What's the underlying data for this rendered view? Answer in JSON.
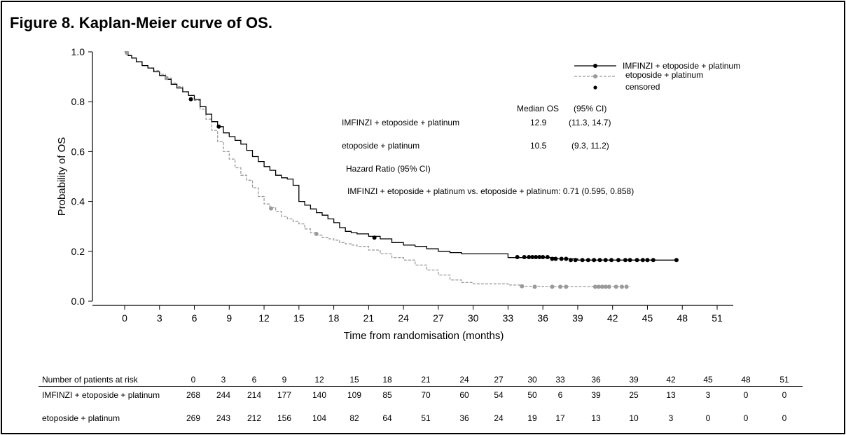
{
  "figure": {
    "title": "Figure 8. Kaplan-Meier curve of OS."
  },
  "chart_data": {
    "type": "line",
    "subtype": "kaplan-meier",
    "xlabel": "Time from randomisation (months)",
    "ylabel": "Probability of OS",
    "xlim": [
      0,
      51
    ],
    "ylim": [
      0.0,
      1.0
    ],
    "x_ticks": [
      0,
      3,
      6,
      9,
      12,
      15,
      18,
      21,
      24,
      27,
      30,
      33,
      36,
      39,
      42,
      45,
      48,
      51
    ],
    "y_ticks": [
      0.0,
      0.2,
      0.4,
      0.6,
      0.8,
      1.0
    ],
    "y_tick_labels": [
      "0.0",
      "0.2",
      "0.4",
      "0.6",
      "0.8",
      "1.0"
    ],
    "grid": false,
    "legend_position": "top-right",
    "legend": {
      "series_1": "IMFINZI + etoposide + platinum",
      "series_2": "etoposide + platinum",
      "censored": "censored"
    },
    "colors": {
      "series_1": "#000000",
      "series_2": "#9a9a9a"
    },
    "series": [
      {
        "name": "IMFINZI + etoposide + platinum",
        "line_style": "solid",
        "x": [
          0,
          0.3,
          0.6,
          1,
          1.5,
          2,
          2.5,
          3,
          3.5,
          4,
          4.5,
          5,
          5.5,
          6,
          6.5,
          7,
          7.5,
          8,
          8.5,
          9,
          9.5,
          10,
          10.5,
          11,
          11.5,
          12,
          12.5,
          13,
          13.5,
          14,
          14.5,
          15,
          15.5,
          16,
          16.5,
          17,
          17.5,
          18,
          18.5,
          19,
          19.5,
          20,
          21,
          22,
          23,
          24,
          25,
          26,
          27,
          28,
          29,
          30,
          31,
          32,
          33,
          34,
          35,
          36,
          37,
          38,
          39,
          40,
          42,
          44,
          46,
          47.5
        ],
        "y": [
          1.0,
          0.985,
          0.975,
          0.96,
          0.945,
          0.935,
          0.92,
          0.905,
          0.89,
          0.87,
          0.855,
          0.84,
          0.825,
          0.81,
          0.78,
          0.75,
          0.72,
          0.7,
          0.675,
          0.66,
          0.645,
          0.63,
          0.605,
          0.58,
          0.56,
          0.54,
          0.525,
          0.505,
          0.495,
          0.49,
          0.465,
          0.4,
          0.385,
          0.37,
          0.355,
          0.345,
          0.33,
          0.315,
          0.295,
          0.28,
          0.275,
          0.27,
          0.26,
          0.25,
          0.235,
          0.225,
          0.22,
          0.21,
          0.2,
          0.195,
          0.19,
          0.19,
          0.19,
          0.19,
          0.175,
          0.175,
          0.175,
          0.175,
          0.17,
          0.17,
          0.165,
          0.165,
          0.165,
          0.165,
          0.165,
          0.165
        ]
      },
      {
        "name": "etoposide + platinum",
        "line_style": "dashed",
        "x": [
          0,
          0.3,
          0.6,
          1,
          1.5,
          2,
          2.5,
          3,
          3.5,
          4,
          4.5,
          5,
          5.5,
          6,
          6.5,
          7,
          7.5,
          8,
          8.5,
          9,
          9.5,
          10,
          10.5,
          11,
          11.5,
          12,
          12.5,
          13,
          13.5,
          14,
          14.5,
          15,
          15.5,
          16,
          16.5,
          17,
          17.5,
          18,
          18.5,
          19,
          19.5,
          20,
          21,
          22,
          23,
          24,
          25,
          26,
          27,
          28,
          29,
          30,
          31,
          32,
          33,
          34,
          35,
          36,
          37,
          38,
          39,
          40,
          41,
          42,
          43,
          43.5
        ],
        "y": [
          1.0,
          0.985,
          0.975,
          0.96,
          0.945,
          0.935,
          0.925,
          0.91,
          0.895,
          0.875,
          0.86,
          0.84,
          0.825,
          0.805,
          0.77,
          0.73,
          0.685,
          0.64,
          0.6,
          0.57,
          0.535,
          0.505,
          0.485,
          0.455,
          0.42,
          0.39,
          0.375,
          0.36,
          0.34,
          0.33,
          0.32,
          0.31,
          0.29,
          0.275,
          0.265,
          0.255,
          0.25,
          0.245,
          0.235,
          0.23,
          0.225,
          0.22,
          0.205,
          0.19,
          0.175,
          0.165,
          0.145,
          0.125,
          0.105,
          0.085,
          0.075,
          0.07,
          0.07,
          0.07,
          0.065,
          0.06,
          0.06,
          0.058,
          0.058,
          0.058,
          0.058,
          0.058,
          0.058,
          0.058,
          0.058,
          0.058
        ]
      }
    ],
    "censored": [
      {
        "series": "IMFINZI + etoposide + platinum",
        "x": [
          5.7,
          8.1,
          21.5,
          33.8,
          34.4,
          34.8,
          35.1,
          35.4,
          35.7,
          36.0,
          36.4,
          36.8,
          37.1,
          37.6,
          38.0,
          38.4,
          38.8,
          39.4,
          39.9,
          40.4,
          40.9,
          41.4,
          41.9,
          42.5,
          43.1,
          43.5,
          44.1,
          44.6,
          45.0,
          45.5,
          47.5
        ],
        "y": [
          0.81,
          0.7,
          0.255,
          0.177,
          0.177,
          0.177,
          0.177,
          0.177,
          0.177,
          0.177,
          0.177,
          0.17,
          0.17,
          0.17,
          0.17,
          0.165,
          0.165,
          0.165,
          0.165,
          0.165,
          0.165,
          0.165,
          0.165,
          0.165,
          0.165,
          0.165,
          0.165,
          0.165,
          0.165,
          0.165,
          0.165
        ]
      },
      {
        "series": "etoposide + platinum",
        "x": [
          0.2,
          3.6,
          12.6,
          16.5,
          34.2,
          35.3,
          36.8,
          37.5,
          38.0,
          40.5,
          40.8,
          41.1,
          41.4,
          41.7,
          42.3,
          42.8,
          43.2
        ],
        "y": [
          0.995,
          0.895,
          0.372,
          0.27,
          0.06,
          0.058,
          0.058,
          0.058,
          0.058,
          0.058,
          0.058,
          0.058,
          0.058,
          0.058,
          0.058,
          0.058,
          0.058
        ]
      }
    ],
    "annotations": {
      "median_header": "Median OS",
      "ci_header": "(95% CI)",
      "rows": [
        {
          "label": "IMFINZI + etoposide + platinum",
          "median": "12.9",
          "ci": "(11.3, 14.7)"
        },
        {
          "label": "etoposide + platinum",
          "median": "10.5",
          "ci": "(9.3, 11.2)"
        }
      ],
      "hr_header": "Hazard Ratio (95% CI)",
      "hr_text": "IMFINZI + etoposide + platinum vs. etoposide + platinum: 0.71 (0.595, 0.858)"
    },
    "risk_table": {
      "header": "Number of patients at risk",
      "times": [
        "0",
        "3",
        "6",
        "9",
        "12",
        "15",
        "18",
        "21",
        "24",
        "27",
        "30",
        "33",
        "36",
        "39",
        "42",
        "45",
        "48",
        "51"
      ],
      "rows": [
        {
          "label": "IMFINZI + etoposide + platinum",
          "values": [
            "268",
            "244",
            "214",
            "177",
            "140",
            "109",
            "85",
            "70",
            "60",
            "54",
            "50",
            "6",
            "39",
            "25",
            "13",
            "3",
            "0",
            "0"
          ]
        },
        {
          "label": "etoposide + platinum",
          "values": [
            "269",
            "243",
            "212",
            "156",
            "104",
            "82",
            "64",
            "51",
            "36",
            "24",
            "19",
            "17",
            "13",
            "10",
            "3",
            "0",
            "0",
            "0"
          ]
        }
      ]
    }
  }
}
